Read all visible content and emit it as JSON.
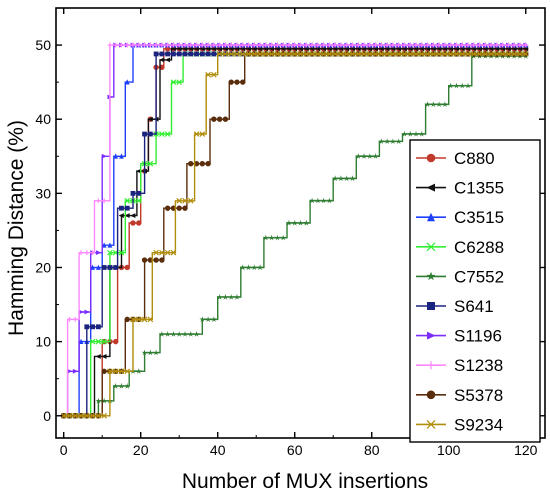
{
  "chart_data": {
    "type": "line",
    "xlabel": "Number of MUX insertions",
    "ylabel": "Hamming Distance (%)",
    "xlim": [
      -2,
      125
    ],
    "ylim": [
      -3,
      55
    ],
    "xticks": [
      0,
      20,
      40,
      60,
      80,
      100,
      120
    ],
    "yticks": [
      0,
      10,
      20,
      30,
      40,
      50
    ],
    "grid": false,
    "legend_position": "right",
    "series": [
      {
        "name": "C880",
        "color": "#c0392b",
        "marker": "circle",
        "x": [
          0,
          6,
          10,
          14,
          17,
          20,
          22,
          24,
          26,
          120
        ],
        "y": [
          0,
          0,
          10,
          20,
          26,
          33,
          40,
          47,
          49.5,
          49.5
        ]
      },
      {
        "name": "C1355",
        "color": "#111111",
        "marker": "triangle-left",
        "x": [
          0,
          5,
          8,
          12,
          15,
          19,
          22,
          25,
          28,
          120
        ],
        "y": [
          0,
          0,
          8,
          20,
          27,
          33,
          40,
          48,
          49.5,
          49.5
        ]
      },
      {
        "name": "C3515",
        "color": "#1f3fff",
        "marker": "triangle-up",
        "x": [
          0,
          2,
          4,
          7,
          10,
          13,
          16,
          18,
          120
        ],
        "y": [
          0,
          0,
          10,
          20,
          23,
          35,
          45,
          50,
          50
        ]
      },
      {
        "name": "C6288",
        "color": "#33ee33",
        "marker": "x",
        "x": [
          0,
          3,
          7,
          12,
          16,
          20,
          24,
          28,
          31,
          120
        ],
        "y": [
          0,
          0,
          10,
          22,
          29,
          34,
          38,
          45,
          48.8,
          48.8
        ]
      },
      {
        "name": "C7552",
        "color": "#2e7d32",
        "marker": "star",
        "x": [
          0,
          5,
          9,
          13,
          17,
          21,
          25,
          28,
          32,
          36,
          40,
          46,
          52,
          58,
          64,
          70,
          76,
          82,
          88,
          94,
          100,
          106,
          120
        ],
        "y": [
          0,
          0,
          2,
          4,
          6,
          8.5,
          11,
          11,
          11,
          13,
          16,
          20,
          24,
          26,
          29,
          32,
          35,
          37,
          38,
          42,
          44.5,
          48.5,
          48.5
        ]
      },
      {
        "name": "S641",
        "color": "#1a237e",
        "marker": "square",
        "x": [
          0,
          3,
          6,
          10,
          14,
          18,
          21,
          24,
          120
        ],
        "y": [
          0,
          0,
          12,
          20,
          28,
          30,
          38,
          48.8,
          48.8
        ]
      },
      {
        "name": "S1196",
        "color": "#7b2cff",
        "marker": "triangle-right",
        "x": [
          0,
          1,
          4,
          7,
          10,
          12,
          13,
          120
        ],
        "y": [
          0,
          6,
          14,
          22,
          35,
          43,
          50,
          50
        ]
      },
      {
        "name": "S1238",
        "color": "#ff88ff",
        "marker": "plus",
        "x": [
          0,
          1,
          4,
          8,
          12,
          16,
          120
        ],
        "y": [
          0,
          13,
          22,
          29,
          50,
          50,
          50
        ]
      },
      {
        "name": "S5378",
        "color": "#5a2d0c",
        "marker": "circle",
        "x": [
          0,
          6,
          10,
          16,
          21,
          26,
          32,
          38,
          43,
          47,
          120
        ],
        "y": [
          0,
          0,
          6,
          13,
          21,
          28,
          34,
          40,
          45,
          48.8,
          48.8
        ]
      },
      {
        "name": "S9234",
        "color": "#b08d0a",
        "marker": "x",
        "x": [
          0,
          7,
          12,
          18,
          23,
          29,
          34,
          37,
          40,
          45,
          120
        ],
        "y": [
          0,
          0,
          6,
          13,
          22,
          29,
          38,
          46,
          48.8,
          48.8,
          48.8
        ]
      }
    ]
  }
}
